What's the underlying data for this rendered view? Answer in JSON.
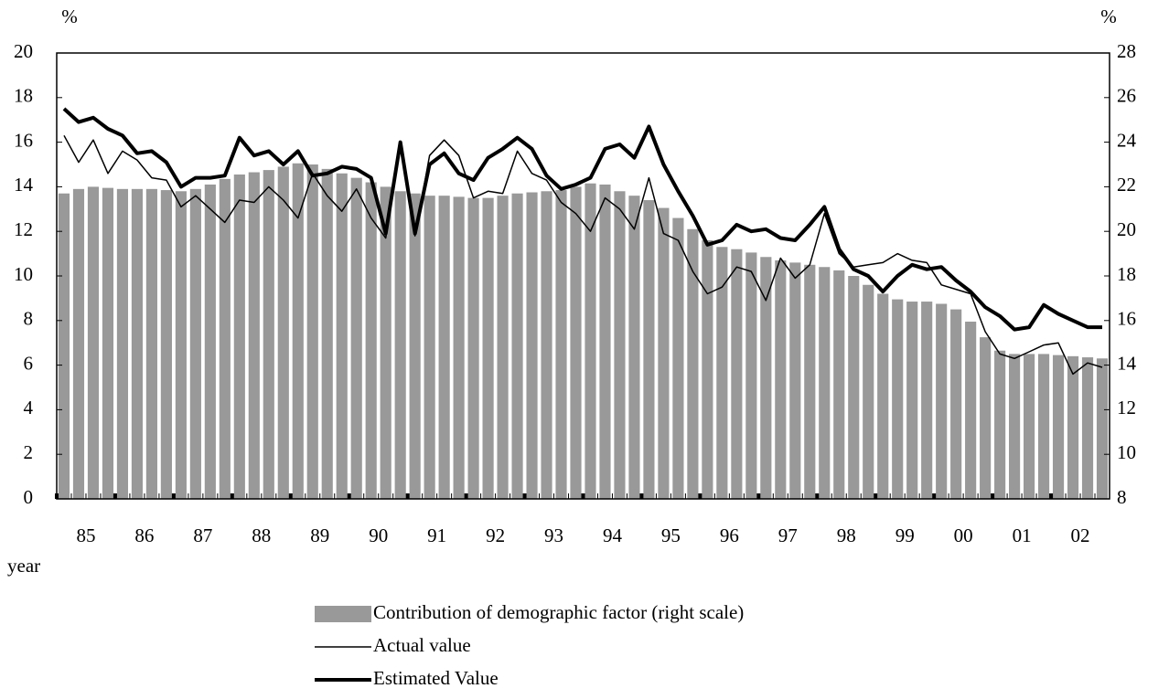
{
  "chart_data": {
    "type": "combo",
    "ylabel": "%",
    "y2label": "%",
    "xlabel": "year",
    "categories": [
      null,
      "85",
      null,
      null,
      null,
      "86",
      null,
      null,
      null,
      "87",
      null,
      null,
      null,
      "88",
      null,
      null,
      null,
      "89",
      null,
      null,
      null,
      "90",
      null,
      null,
      null,
      "91",
      null,
      null,
      null,
      "92",
      null,
      null,
      null,
      "93",
      null,
      null,
      null,
      "94",
      null,
      null,
      null,
      "95",
      null,
      null,
      null,
      "96",
      null,
      null,
      null,
      "97",
      null,
      null,
      null,
      "98",
      null,
      null,
      null,
      "99",
      null,
      null,
      null,
      "00",
      null,
      null,
      null,
      "01",
      null,
      null,
      null,
      "02",
      null,
      null
    ],
    "ylim": [
      0,
      20
    ],
    "yticks": [
      0,
      2,
      4,
      6,
      8,
      10,
      12,
      14,
      16,
      18,
      20
    ],
    "y2lim": [
      8,
      28
    ],
    "y2ticks": [
      8,
      10,
      12,
      14,
      16,
      18,
      20,
      22,
      24,
      26,
      28
    ],
    "series": [
      {
        "name": "Contribution of demographic factor (right scale)",
        "type": "bar",
        "axis": "y2",
        "color": "#999999",
        "values": [
          21.7,
          21.9,
          22.0,
          21.95,
          21.9,
          21.9,
          21.9,
          21.85,
          21.8,
          21.9,
          22.1,
          22.35,
          22.55,
          22.65,
          22.75,
          22.9,
          23.05,
          23.0,
          22.8,
          22.6,
          22.4,
          22.2,
          22.0,
          21.8,
          21.7,
          21.6,
          21.6,
          21.55,
          21.5,
          21.5,
          21.6,
          21.7,
          21.75,
          21.8,
          21.85,
          22.0,
          22.15,
          22.1,
          21.8,
          21.6,
          21.4,
          21.05,
          20.6,
          20.1,
          19.6,
          19.3,
          19.2,
          19.05,
          18.85,
          18.7,
          18.6,
          18.5,
          18.4,
          18.25,
          18.0,
          17.6,
          17.2,
          16.95,
          16.85,
          16.85,
          16.75,
          16.5,
          15.95,
          15.25,
          14.65,
          14.5,
          14.5,
          14.5,
          14.45,
          14.4,
          14.35,
          14.3
        ]
      },
      {
        "name": "Actual value",
        "type": "line",
        "color": "#000000",
        "line_width": 1.5,
        "values": [
          16.3,
          15.1,
          16.1,
          14.6,
          15.6,
          15.2,
          14.4,
          14.3,
          13.1,
          13.6,
          13.0,
          12.4,
          13.4,
          13.3,
          14.0,
          13.4,
          12.6,
          14.6,
          13.6,
          12.9,
          13.9,
          12.6,
          11.7,
          16.0,
          11.8,
          15.4,
          16.1,
          15.4,
          13.5,
          13.8,
          13.7,
          15.6,
          14.6,
          14.3,
          13.3,
          12.8,
          12.0,
          13.5,
          13.0,
          12.1,
          14.4,
          11.9,
          11.6,
          10.2,
          9.2,
          9.5,
          10.4,
          10.2,
          8.9,
          10.8,
          9.9,
          10.5,
          12.8,
          11.0,
          10.4,
          10.5,
          10.6,
          11.0,
          10.7,
          10.6,
          9.6,
          9.4,
          9.2,
          7.5,
          6.5,
          6.3,
          6.6,
          6.9,
          7.0,
          5.6,
          6.1,
          5.9
        ]
      },
      {
        "name": "Estimated Value",
        "type": "line",
        "color": "#000000",
        "line_width": 4,
        "values": [
          17.5,
          16.9,
          17.1,
          16.6,
          16.3,
          15.5,
          15.6,
          15.1,
          14.0,
          14.4,
          14.4,
          14.5,
          16.2,
          15.4,
          15.6,
          15.0,
          15.6,
          14.5,
          14.6,
          14.9,
          14.8,
          14.4,
          11.9,
          16.0,
          11.9,
          15.0,
          15.5,
          14.6,
          14.3,
          15.3,
          15.7,
          16.2,
          15.7,
          14.5,
          13.9,
          14.1,
          14.4,
          15.7,
          15.9,
          15.3,
          16.7,
          15.0,
          13.8,
          12.7,
          11.4,
          11.6,
          12.3,
          12.0,
          12.1,
          11.7,
          11.6,
          12.3,
          13.1,
          11.2,
          10.3,
          10.0,
          9.3,
          10.0,
          10.5,
          10.3,
          10.4,
          9.8,
          9.3,
          8.6,
          8.2,
          7.6,
          7.7,
          8.7,
          8.3,
          8.0,
          7.7,
          7.7
        ]
      }
    ]
  }
}
